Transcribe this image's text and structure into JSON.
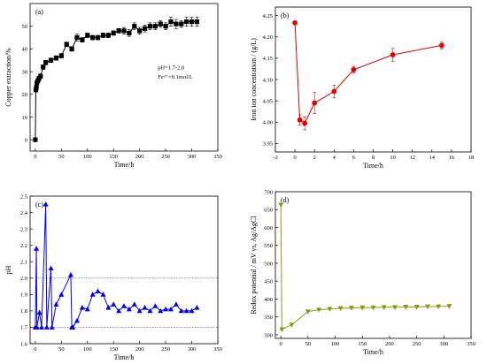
{
  "figure": {
    "title": ""
  },
  "chart_data": [
    {
      "id": "a",
      "type": "line",
      "panel_label": "(a)",
      "xlabel": "Time/h",
      "ylabel": "Copper extraction/%",
      "xlim": [
        -10,
        350
      ],
      "ylim": [
        -5,
        60
      ],
      "xticks": [
        0,
        50,
        100,
        150,
        200,
        250,
        300,
        350
      ],
      "yticks": [
        0,
        10,
        20,
        30,
        40,
        50
      ],
      "grid": false,
      "annotations": [
        {
          "text": "pH=1.7-2.0",
          "x": 235,
          "y": 31
        },
        {
          "text": "Fe³⁺=0.1mol/L",
          "x": 235,
          "y": 27
        }
      ],
      "series": [
        {
          "color": "#000000",
          "marker": "square",
          "x": [
            0,
            1,
            2,
            3,
            5,
            7,
            10,
            15,
            20,
            30,
            40,
            50,
            60,
            70,
            80,
            90,
            100,
            110,
            120,
            130,
            140,
            150,
            160,
            170,
            180,
            190,
            200,
            210,
            220,
            230,
            240,
            250,
            260,
            270,
            280,
            290,
            300,
            310
          ],
          "y": [
            0,
            22,
            23,
            25,
            26,
            27,
            28,
            32,
            34,
            35,
            36,
            37,
            42,
            40,
            45,
            44,
            46,
            45,
            45,
            46,
            46,
            47,
            48,
            48,
            47,
            50,
            48,
            49,
            50,
            50,
            51,
            50,
            52,
            51,
            51,
            52,
            52,
            52
          ],
          "err": [
            0,
            1,
            1,
            1,
            1,
            1,
            1,
            1,
            1,
            1,
            1,
            1,
            1,
            1,
            1.5,
            1,
            1,
            1,
            1,
            1,
            1,
            1,
            1,
            1.5,
            1.5,
            1.5,
            1.5,
            1.5,
            1.5,
            1.5,
            1.5,
            1.5,
            2,
            2,
            1.5,
            2,
            2,
            2
          ]
        }
      ]
    },
    {
      "id": "b",
      "type": "line",
      "panel_label": "(b)",
      "xlabel": "Time/h",
      "ylabel": "Iron ion concentration / (g/L)",
      "xlim": [
        -2,
        18
      ],
      "ylim": [
        3.93,
        4.27
      ],
      "xticks": [
        -2,
        0,
        2,
        4,
        6,
        8,
        10,
        12,
        14,
        16,
        18
      ],
      "yticks": [
        3.95,
        4.0,
        4.05,
        4.1,
        4.15,
        4.2,
        4.25
      ],
      "ytick_labels": [
        "3.95",
        "4.00",
        "4.05",
        "4.10",
        "4.15",
        "4.20",
        "4.25"
      ],
      "grid": false,
      "series": [
        {
          "color": "#e00000",
          "marker": "circle",
          "x": [
            0,
            0.5,
            1,
            2,
            4,
            6,
            10,
            15
          ],
          "y": [
            4.233,
            4.005,
            3.997,
            4.045,
            4.072,
            4.123,
            4.158,
            4.18
          ],
          "err": [
            0,
            0.012,
            0.015,
            0.025,
            0.015,
            0.008,
            0.015,
            0.008
          ]
        }
      ]
    },
    {
      "id": "c",
      "type": "line",
      "panel_label": "(c)",
      "xlabel": "Time/h",
      "ylabel": "pH",
      "xlim": [
        -10,
        350
      ],
      "ylim": [
        1.6,
        2.5
      ],
      "xticks": [
        0,
        50,
        100,
        150,
        200,
        250,
        300,
        350
      ],
      "yticks": [
        1.6,
        1.7,
        1.8,
        1.9,
        2.0,
        2.1,
        2.2,
        2.3,
        2.4,
        2.5
      ],
      "ytick_labels": [
        "1.6",
        "1.7",
        "1.8",
        "1.9",
        "2.0",
        "2.1",
        "2.2",
        "2.3",
        "2.4",
        "2.5"
      ],
      "reference_lines": [
        1.7,
        2.0
      ],
      "grid": false,
      "series": [
        {
          "color": "#0000ee",
          "marker": "triangle-up",
          "x": [
            0,
            2,
            3,
            8,
            12,
            20,
            22,
            30,
            32,
            40,
            50,
            68,
            70,
            72,
            80,
            90,
            100,
            110,
            120,
            130,
            140,
            150,
            160,
            170,
            180,
            190,
            200,
            210,
            220,
            230,
            240,
            250,
            260,
            270,
            280,
            290,
            300,
            310
          ],
          "y": [
            1.7,
            2.18,
            1.7,
            1.79,
            1.7,
            2.45,
            1.7,
            2.06,
            1.7,
            1.84,
            1.9,
            2.02,
            1.7,
            1.7,
            1.74,
            1.82,
            1.81,
            1.9,
            1.92,
            1.9,
            1.82,
            1.84,
            1.8,
            1.83,
            1.81,
            1.84,
            1.8,
            1.82,
            1.8,
            1.83,
            1.8,
            1.81,
            1.81,
            1.84,
            1.8,
            1.8,
            1.8,
            1.82
          ]
        }
      ]
    },
    {
      "id": "d",
      "type": "line",
      "panel_label": "(d)",
      "xlabel": "Time/h",
      "ylabel": "Redox potential / mV vs. Ag/AgCl",
      "xlim": [
        -10,
        350
      ],
      "ylim": [
        290,
        700
      ],
      "xticks": [
        0,
        50,
        100,
        150,
        200,
        250,
        300,
        350
      ],
      "yticks": [
        300,
        350,
        400,
        450,
        500,
        550,
        600,
        650,
        700
      ],
      "grid": false,
      "series": [
        {
          "color": "#8a9a10",
          "marker": "triangle-down",
          "x": [
            0,
            2,
            20,
            50,
            70,
            90,
            110,
            130,
            150,
            170,
            190,
            210,
            230,
            250,
            270,
            290,
            310
          ],
          "y": [
            663,
            315,
            328,
            365,
            370,
            372,
            374,
            375,
            376,
            376,
            377,
            377,
            378,
            378,
            379,
            379,
            380
          ]
        }
      ]
    }
  ]
}
